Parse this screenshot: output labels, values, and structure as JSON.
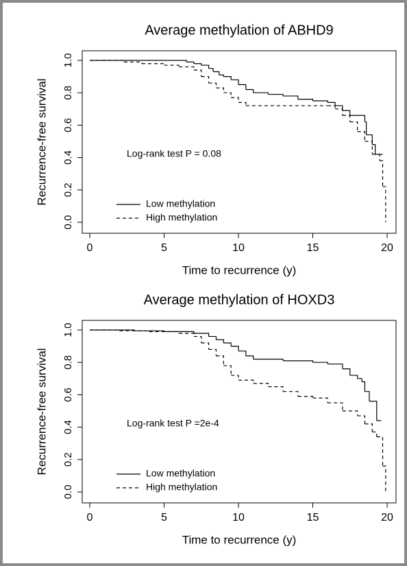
{
  "chart_data": [
    {
      "type": "line",
      "step": true,
      "title": "Average methylation of ABHD9",
      "xlabel": "Time to recurrence (y)",
      "ylabel": "Recurrence-free survival",
      "annotation": "Log-rank test P = 0.08",
      "xlim": [
        0,
        20
      ],
      "ylim": [
        0,
        1
      ],
      "xticks": [
        0,
        5,
        10,
        15,
        20
      ],
      "yticks": [
        {
          "value": 0,
          "label": "0.0"
        },
        0.2,
        0.4,
        0.6,
        0.8,
        {
          "value": 1,
          "label": "1.0"
        }
      ],
      "series": [
        {
          "name": "Low methylation",
          "color": "#000000",
          "line_style": "solid",
          "x": [
            0,
            6.5,
            7,
            7.5,
            8,
            8.3,
            8.7,
            9,
            9.5,
            10,
            10.5,
            11,
            12,
            13,
            14,
            15,
            16,
            16.5,
            17,
            17.5,
            18.5,
            18.6,
            19,
            19.2,
            19.7
          ],
          "values": [
            1,
            0.99,
            0.98,
            0.97,
            0.95,
            0.93,
            0.91,
            0.9,
            0.88,
            0.85,
            0.82,
            0.8,
            0.79,
            0.78,
            0.76,
            0.75,
            0.74,
            0.72,
            0.69,
            0.66,
            0.62,
            0.54,
            0.48,
            0.42,
            0.42
          ]
        },
        {
          "name": "High methylation",
          "color": "#000000",
          "line_style": "dashed",
          "x": [
            0,
            2.3,
            3.5,
            5,
            6,
            7,
            7.5,
            8,
            8.5,
            9,
            9.5,
            10,
            10.5,
            16,
            16.5,
            17,
            17.5,
            18,
            18.5,
            19,
            19.5,
            19.7,
            19.9
          ],
          "values": [
            1,
            0.99,
            0.98,
            0.97,
            0.96,
            0.94,
            0.9,
            0.86,
            0.83,
            0.8,
            0.77,
            0.74,
            0.72,
            0.72,
            0.7,
            0.66,
            0.62,
            0.56,
            0.5,
            0.42,
            0.38,
            0.22,
            0
          ]
        }
      ]
    },
    {
      "type": "line",
      "step": true,
      "title": "Average methylation of HOXD3",
      "xlabel": "Time to recurrence (y)",
      "ylabel": "Recurrence-free survival",
      "annotation": "Log-rank test P =2e-4",
      "xlim": [
        0,
        20
      ],
      "ylim": [
        0,
        1
      ],
      "xticks": [
        0,
        5,
        10,
        15,
        20
      ],
      "yticks": [
        {
          "value": 0,
          "label": "0.0"
        },
        0.2,
        0.4,
        0.6,
        0.8,
        {
          "value": 1,
          "label": "1.0"
        }
      ],
      "series": [
        {
          "name": "Low methylation",
          "color": "#000000",
          "line_style": "solid",
          "x": [
            0,
            3,
            5,
            7,
            8,
            8.5,
            9,
            9.5,
            10,
            10.5,
            11,
            13,
            15,
            16,
            17,
            17.5,
            18,
            18.3,
            18.5,
            18.8,
            19.3,
            19.6
          ],
          "values": [
            1,
            0.995,
            0.99,
            0.98,
            0.96,
            0.94,
            0.92,
            0.9,
            0.87,
            0.84,
            0.82,
            0.81,
            0.8,
            0.79,
            0.76,
            0.72,
            0.7,
            0.68,
            0.62,
            0.56,
            0.44,
            0.44
          ]
        },
        {
          "name": "High methylation",
          "color": "#000000",
          "line_style": "dashed",
          "x": [
            0,
            2,
            4,
            6,
            7,
            7.5,
            8,
            8.5,
            9,
            9.5,
            10,
            11,
            12,
            13,
            14,
            15,
            16,
            17,
            18,
            18.5,
            19,
            19.3,
            19.7,
            19.9
          ],
          "values": [
            1,
            0.995,
            0.99,
            0.98,
            0.96,
            0.92,
            0.88,
            0.84,
            0.78,
            0.72,
            0.69,
            0.67,
            0.65,
            0.62,
            0.59,
            0.58,
            0.55,
            0.5,
            0.47,
            0.42,
            0.37,
            0.34,
            0.16,
            0
          ]
        }
      ]
    }
  ]
}
